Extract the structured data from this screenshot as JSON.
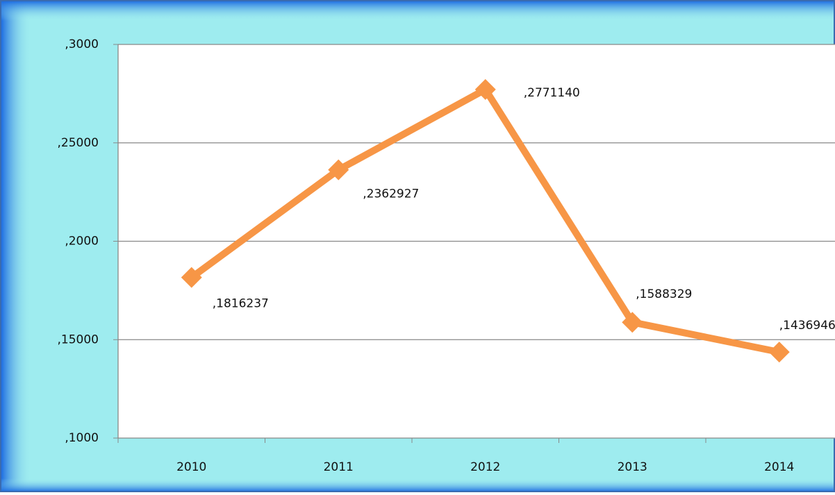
{
  "chart_data": {
    "type": "line",
    "categories": [
      "2010",
      "2011",
      "2012",
      "2013",
      "2014"
    ],
    "series": [
      {
        "name": null,
        "color": "#f79646",
        "values": [
          1816237,
          2362927,
          2771140,
          1588329,
          1436946
        ],
        "value_labels": [
          ",1816237",
          ",2362927",
          ",2771140",
          ",1588329",
          ",1436946"
        ]
      }
    ],
    "ylim": [
      1000000,
      3000000
    ],
    "yticks": [
      {
        "value": 1000000,
        "label": ",1000"
      },
      {
        "value": 1500000,
        "label": ",15000"
      },
      {
        "value": 2000000,
        "label": ",2000"
      },
      {
        "value": 2500000,
        "label": ",25000"
      },
      {
        "value": 3000000,
        "label": ",3000"
      }
    ],
    "grid": true
  }
}
